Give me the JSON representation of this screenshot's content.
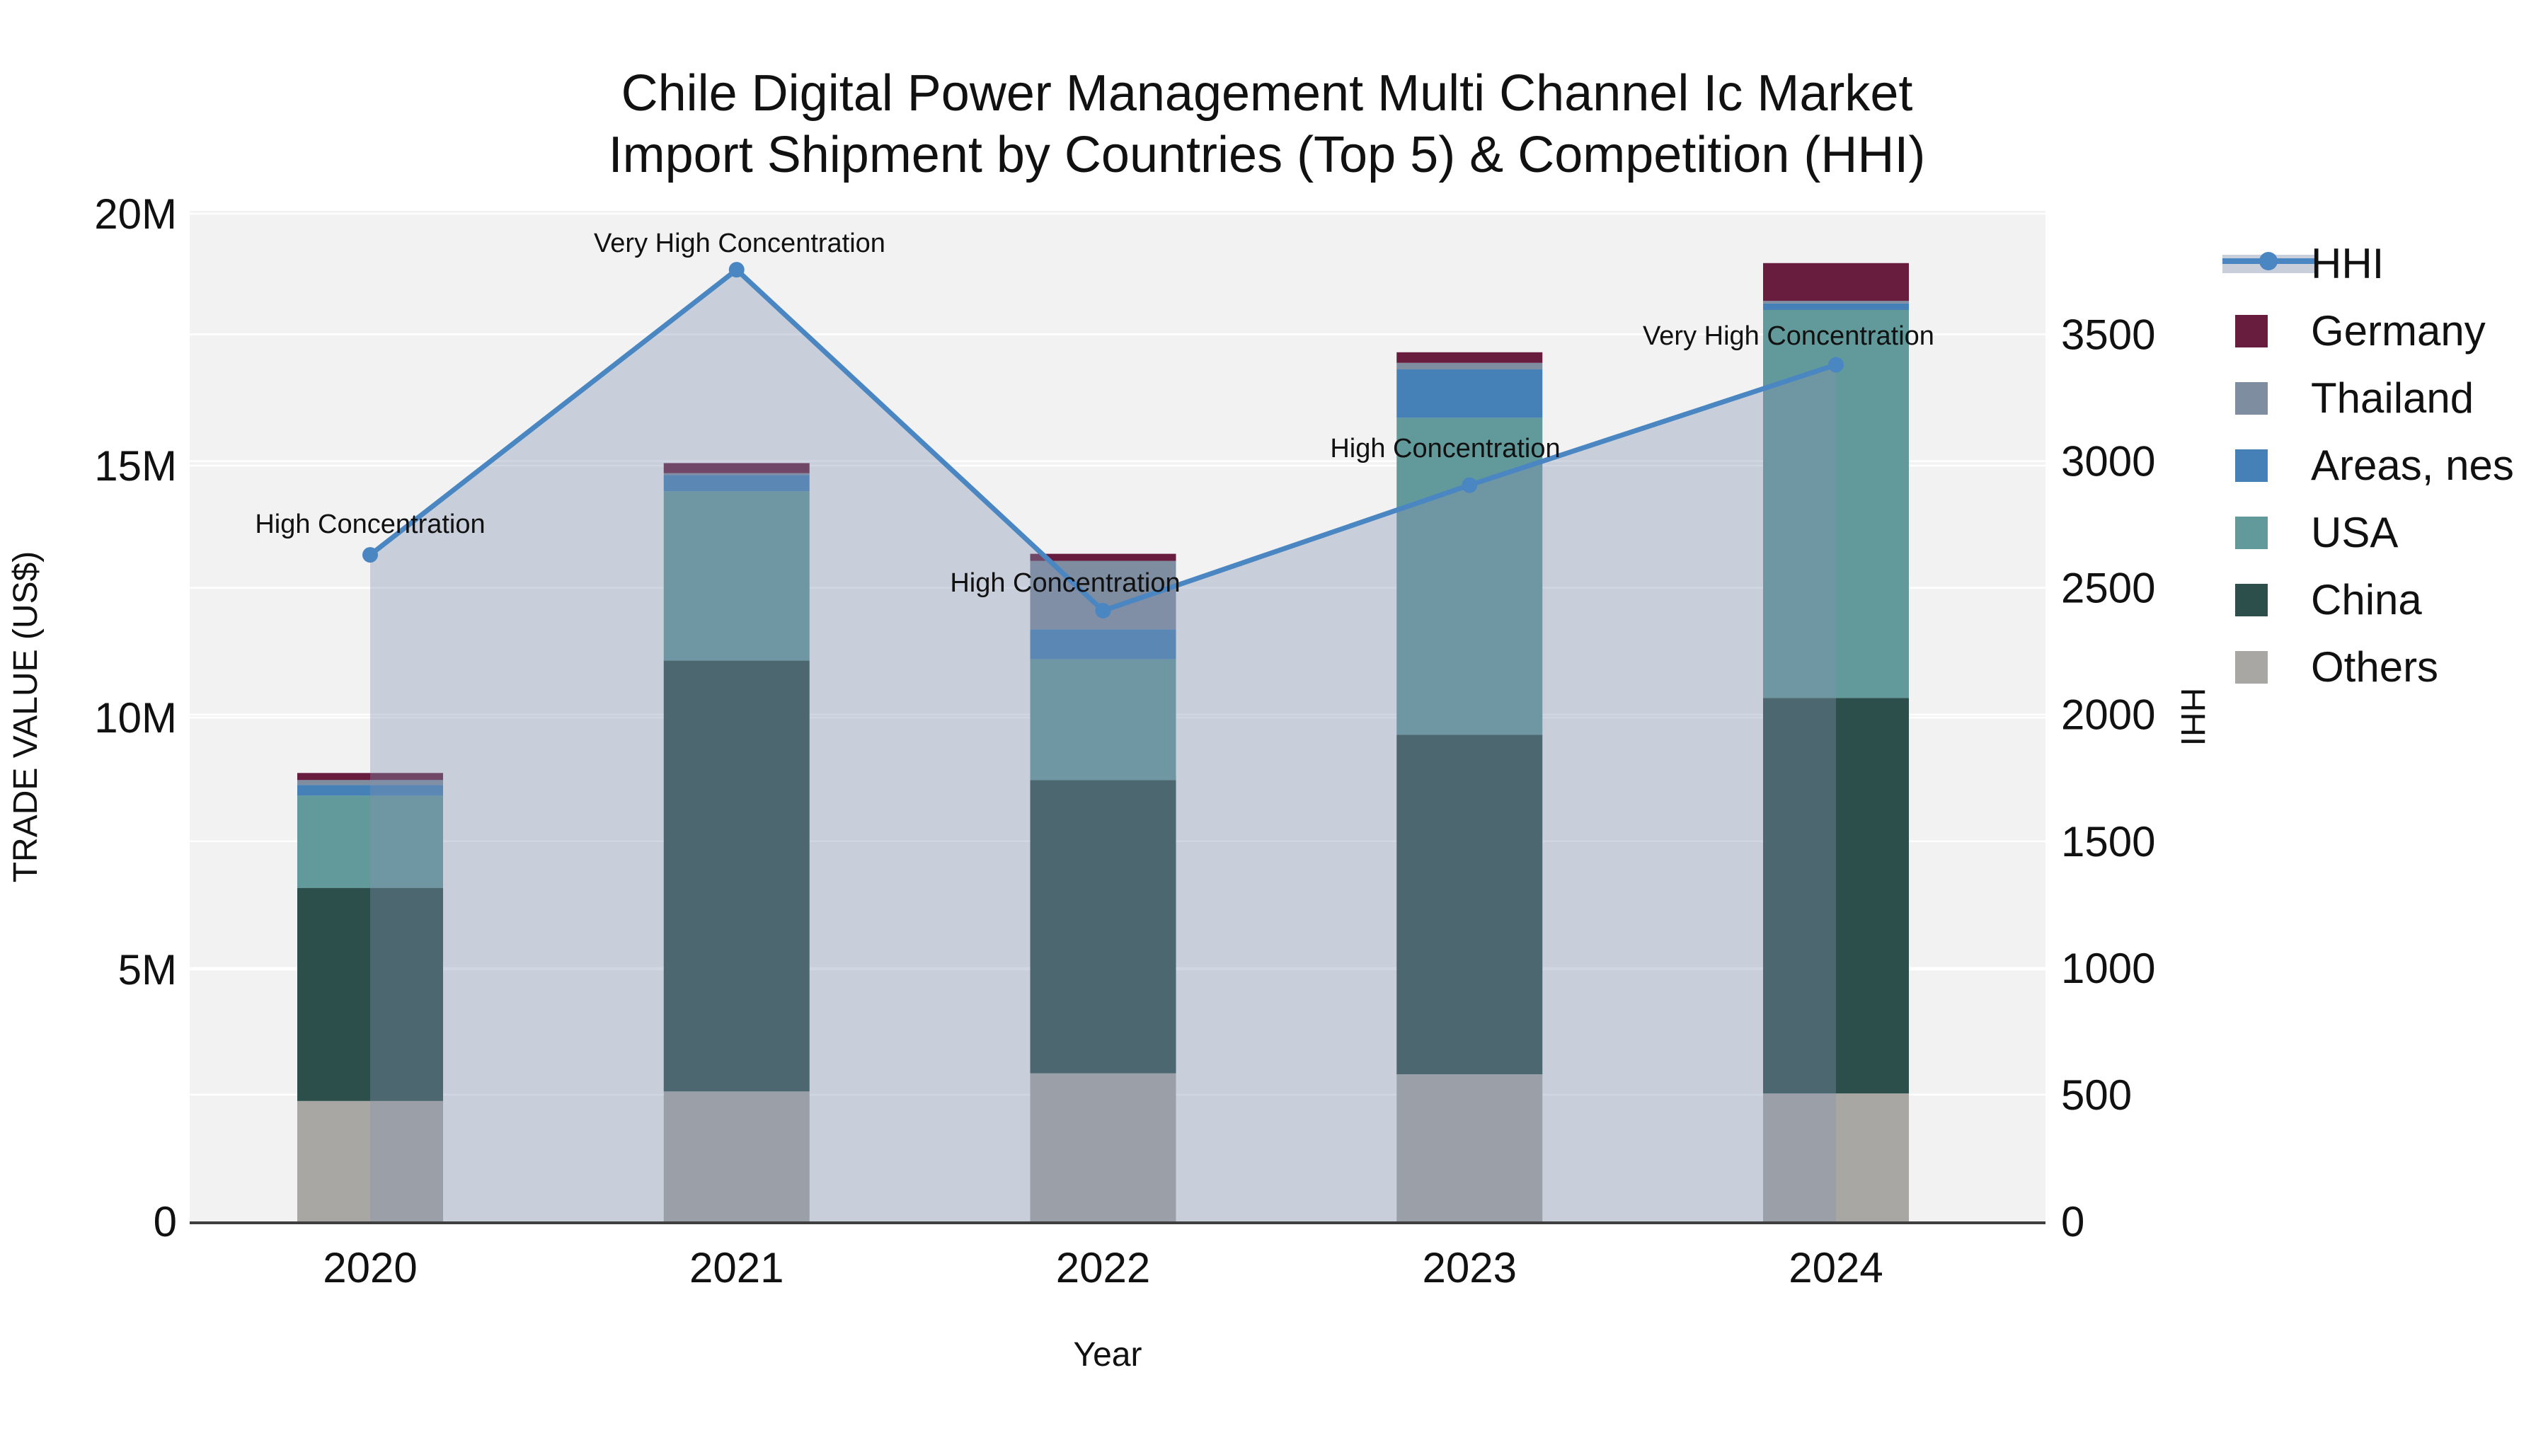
{
  "title": {
    "line1": "Chile Digital Power Management Multi Channel Ic Market",
    "line2": "Import Shipment by Countries (Top 5) & Competition (HHI)"
  },
  "colors": {
    "HHI": "#4a86c2",
    "HHI_area": "#8393b1",
    "Germany": "#681c3e",
    "Thailand": "#7f8da0",
    "Areas, nes": "#4580b6",
    "USA": "#629a9b",
    "China": "#2d4f4b",
    "Others": "#a8a7a4",
    "plot_bg": "#f2f2f2",
    "grid": "#ffffff",
    "axis_line": "#3f3f3f",
    "legend_band": "#c9cfda"
  },
  "legend": {
    "items": [
      {
        "label": "HHI",
        "type": "line"
      },
      {
        "label": "Germany",
        "type": "swatch"
      },
      {
        "label": "Thailand",
        "type": "swatch"
      },
      {
        "label": "Areas, nes",
        "type": "swatch"
      },
      {
        "label": "USA",
        "type": "swatch"
      },
      {
        "label": "China",
        "type": "swatch"
      },
      {
        "label": "Others",
        "type": "swatch"
      }
    ]
  },
  "chart_data": {
    "type": "combo-stacked-bar-line",
    "categories": [
      "2020",
      "2021",
      "2022",
      "2023",
      "2024"
    ],
    "bar_value_unit": "TRADE VALUE (US$), millions",
    "stack_order_bottom_to_top": [
      "Others",
      "China",
      "USA",
      "Areas, nes",
      "Thailand",
      "Germany"
    ],
    "series": [
      {
        "name": "Others",
        "values": [
          2.39,
          2.58,
          2.94,
          2.92,
          2.54
        ]
      },
      {
        "name": "China",
        "values": [
          4.23,
          8.55,
          5.82,
          6.74,
          7.85
        ]
      },
      {
        "name": "USA",
        "values": [
          1.83,
          3.36,
          2.4,
          6.29,
          7.7
        ]
      },
      {
        "name": "Areas, nes",
        "values": [
          0.21,
          0.32,
          0.59,
          0.96,
          0.13
        ]
      },
      {
        "name": "Thailand",
        "values": [
          0.1,
          0.04,
          1.36,
          0.13,
          0.05
        ]
      },
      {
        "name": "Germany",
        "values": [
          0.14,
          0.2,
          0.14,
          0.21,
          0.75
        ]
      }
    ],
    "bar_totals": [
      8.9,
      15.05,
      13.25,
      17.25,
      19.02
    ],
    "line_series": {
      "name": "HHI",
      "values": [
        2630,
        3755,
        2410,
        2905,
        3380
      ],
      "axis": "right",
      "area_fill": true
    },
    "annotations": [
      {
        "text": "High Concentration",
        "x": 523,
        "y": 740
      },
      {
        "text": "Very High Concentration",
        "x": 1045,
        "y": 343
      },
      {
        "text": "High Concentration",
        "x": 1505,
        "y": 823
      },
      {
        "text": "High Concentration",
        "x": 2042,
        "y": 633
      },
      {
        "text": "Very High Concentration",
        "x": 2527,
        "y": 474
      }
    ],
    "x_axis": {
      "label": "Year",
      "tick_labels": [
        "2020",
        "2021",
        "2022",
        "2023",
        "2024"
      ]
    },
    "y_left_axis": {
      "label": "TRADE VALUE (US$)",
      "tick_labels": [
        "0",
        "5M",
        "10M",
        "15M",
        "20M"
      ],
      "tick_values_millions": [
        0,
        5,
        10,
        15,
        20
      ],
      "range_millions": [
        0,
        20
      ]
    },
    "y_right_axis": {
      "label": "HHI",
      "tick_labels": [
        "0",
        "500",
        "1000",
        "1500",
        "2000",
        "2500",
        "3000",
        "3500"
      ],
      "tick_values": [
        0,
        500,
        1000,
        1500,
        2000,
        2500,
        3000,
        3500
      ],
      "range": [
        0,
        3987
      ]
    },
    "grid": true,
    "legend_position": "right-top"
  }
}
